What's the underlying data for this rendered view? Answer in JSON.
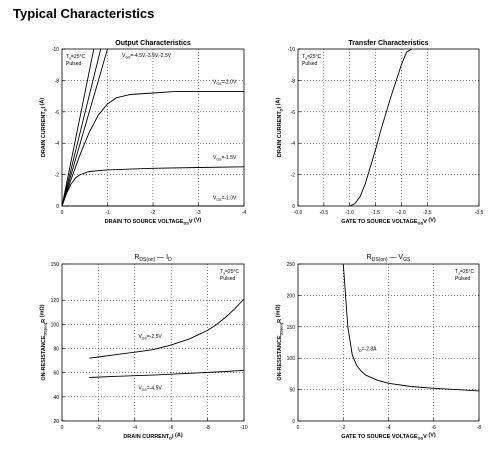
{
  "heading": "Typical Characteristics",
  "chart_data": [
    {
      "type": "line",
      "title": "Output Characteristics",
      "xlabel": "DRAIN TO SOURCE VOLTAGE  V",
      "xlabel_sub": "DS",
      "xlabel_unit": "(V)",
      "ylabel": "DRAIN CURRENT  I",
      "ylabel_sub": "D",
      "ylabel_unit": "(A)",
      "xlim": [
        0,
        -4
      ],
      "ylim": [
        0,
        -10
      ],
      "xticks": [
        0,
        -1,
        -2,
        -3,
        -4
      ],
      "yticks": [
        0,
        -2,
        -4,
        -6,
        -8,
        -10
      ],
      "annotation_lines": [
        "T  =25°C",
        "Pulsed"
      ],
      "annotation_sub": "a",
      "series": [
        {
          "label": "V  =-4.5V,-3.5V,-2.5V",
          "label_sub": "GS",
          "x": [
            0,
            -0.7
          ],
          "y": [
            0,
            -10
          ]
        },
        {
          "x": [
            0,
            -0.85
          ],
          "y": [
            0,
            -10
          ]
        },
        {
          "x": [
            0,
            -1.0
          ],
          "y": [
            0,
            -10
          ]
        },
        {
          "label": "V  =-2.0V",
          "label_sub": "GS",
          "x": [
            0,
            -0.2,
            -0.4,
            -0.6,
            -0.8,
            -1.0,
            -1.2,
            -1.5,
            -2.0,
            -2.5,
            -3.0,
            -3.5,
            -4.0
          ],
          "y": [
            0,
            -1.7,
            -3.3,
            -4.7,
            -5.8,
            -6.5,
            -6.9,
            -7.1,
            -7.2,
            -7.3,
            -7.3,
            -7.3,
            -7.3
          ]
        },
        {
          "label": "V  =-1.5V",
          "label_sub": "GS",
          "x": [
            0,
            -0.1,
            -0.2,
            -0.3,
            -0.4,
            -0.6,
            -0.8,
            -1.0,
            -1.5,
            -2.0,
            -3.0,
            -4.0
          ],
          "y": [
            0,
            -0.8,
            -1.4,
            -1.8,
            -2.0,
            -2.2,
            -2.25,
            -2.3,
            -2.35,
            -2.4,
            -2.45,
            -2.5
          ]
        },
        {
          "label": "V  =-1.0V",
          "label_sub": "GS",
          "x": [
            0,
            -4.0
          ],
          "y": [
            0,
            0
          ]
        }
      ]
    },
    {
      "type": "line",
      "title": "Transfer Characteristics",
      "xlabel": "GATE TO SOURCE VOLTAGE  V",
      "xlabel_sub": "GS",
      "xlabel_unit": "(V)",
      "ylabel": "DRAIN CURRENT  I",
      "ylabel_sub": "D",
      "ylabel_unit": "(A)",
      "xlim": [
        0,
        -3.5
      ],
      "ylim": [
        0,
        -10
      ],
      "xticks": [
        0,
        -0.5,
        -1.0,
        -1.5,
        -2.0,
        -2.5,
        -3.5
      ],
      "xtick_labels": [
        "-0.0",
        "-0.5",
        "-1.0",
        "-1.5",
        "-2.0",
        "-2.5",
        "-3.5"
      ],
      "yticks": [
        0,
        -2,
        -4,
        -6,
        -8,
        -10
      ],
      "annotation_lines": [
        "T  =25°C",
        "Pulsed"
      ],
      "annotation_sub": "a",
      "series": [
        {
          "x": [
            -1.0,
            -1.1,
            -1.2,
            -1.3,
            -1.4,
            -1.5,
            -1.6,
            -1.7,
            -1.8,
            -1.9,
            -2.0,
            -2.1,
            -2.2
          ],
          "y": [
            0,
            -0.15,
            -0.6,
            -1.4,
            -2.5,
            -3.6,
            -4.8,
            -5.9,
            -7.0,
            -8.0,
            -9.0,
            -9.8,
            -10.0
          ]
        }
      ]
    },
    {
      "type": "line",
      "title": "R          —   I",
      "title_sub": "DS(on)",
      "title_sub2": "D",
      "xlabel": "DRAIN CURRENT  I",
      "xlabel_sub": "D",
      "xlabel_unit": "(A)",
      "ylabel": "ON-RESISTANCE  R",
      "ylabel_sub": "DS(on)",
      "ylabel_unit": "(mΩ)",
      "xlim": [
        0,
        -10
      ],
      "ylim": [
        20,
        150
      ],
      "xticks": [
        0,
        -2,
        -4,
        -6,
        -8,
        -10
      ],
      "yticks": [
        20,
        40,
        60,
        80,
        100,
        120,
        150
      ],
      "annotation_lines": [
        "T  =25°C",
        "Pulsed"
      ],
      "annotation_sub": "a",
      "series": [
        {
          "label": "V  =-2.5V",
          "label_sub": "GS",
          "x": [
            -1.5,
            -2,
            -3,
            -4,
            -5,
            -6,
            -7,
            -8,
            -8.5,
            -9,
            -9.5,
            -10
          ],
          "y": [
            72,
            73,
            75,
            77,
            79,
            83,
            88,
            95,
            100,
            106,
            113,
            121
          ]
        },
        {
          "label": "V  =-4.5V",
          "label_sub": "GS",
          "x": [
            -1.5,
            -3,
            -5,
            -7,
            -9,
            -10
          ],
          "y": [
            56,
            57,
            58,
            59.5,
            61,
            62
          ]
        }
      ]
    },
    {
      "type": "line",
      "title": "R          —   V",
      "title_sub": "DS(on)",
      "title_sub2": "GS",
      "xlabel": "GATE TO SOURCE VOLTAGE  V",
      "xlabel_sub": "GS",
      "xlabel_unit": "(V)",
      "ylabel": "ON-RESISTANCE  R",
      "ylabel_sub": "DS(on)",
      "ylabel_unit": "(mΩ)",
      "xlim": [
        0,
        -8
      ],
      "ylim": [
        0,
        250
      ],
      "xticks": [
        0,
        -2,
        -4,
        -6,
        -8
      ],
      "yticks": [
        0,
        50,
        100,
        150,
        200,
        250
      ],
      "annotation_lines": [
        "T  =25°C",
        "Pulsed"
      ],
      "annotation_sub": "a",
      "series": [
        {
          "label": "I  =-2.8A",
          "label_sub": "D",
          "x": [
            -2.0,
            -2.2,
            -2.4,
            -2.6,
            -2.8,
            -3.0,
            -3.5,
            -4.0,
            -5.0,
            -6.0,
            -7.0,
            -8.0
          ],
          "y": [
            250,
            150,
            105,
            88,
            79,
            73,
            65,
            60,
            55,
            52,
            50,
            48
          ]
        }
      ]
    }
  ]
}
